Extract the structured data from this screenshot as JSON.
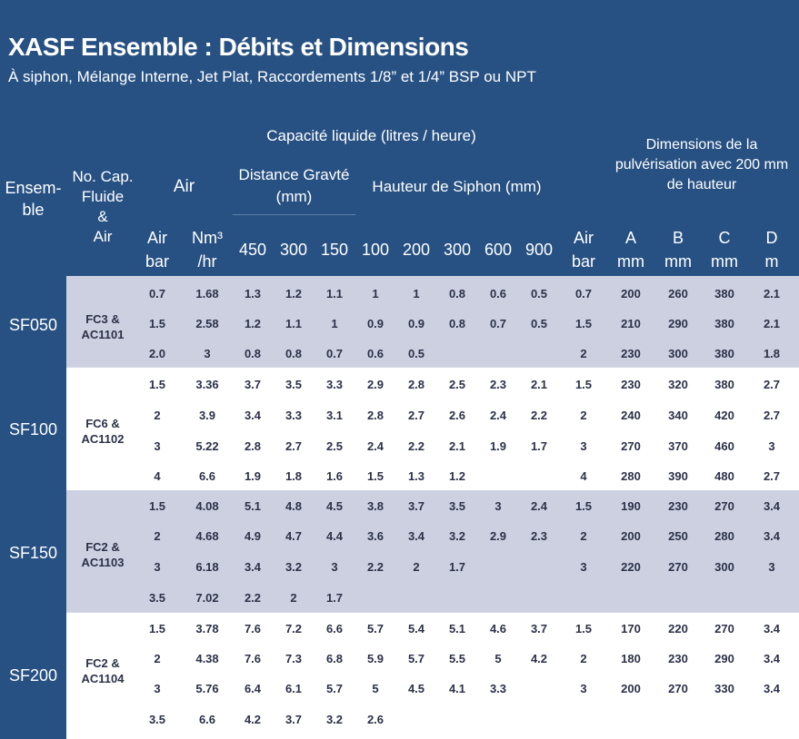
{
  "title": "XASF Ensemble : Débits et Dimensions",
  "subtitle": "À siphon, Mélange Interne,  Jet Plat, Raccordements 1/8” et 1/4” BSP ou NPT",
  "headers": {
    "capacity": "Capacité liquide (litres / heure)",
    "dimensions_l1": "Dimensions de la",
    "dimensions_l2": "pulvérisation avec 200 mm",
    "dimensions_l3": "de hauteur",
    "ensemble_l1": "Ensem-",
    "ensemble_l2": "ble",
    "cap_l1": "No. Cap.",
    "cap_l2": "Fluide",
    "cap_l3": "&",
    "cap_l4": "Air",
    "air": "Air",
    "gravity_l1": "Distance Gravté",
    "gravity_l2": "(mm)",
    "siphon": "Hauteur de Siphon (mm)",
    "columns": [
      {
        "l1": "Air",
        "l2": "bar"
      },
      {
        "l1": "Nm³",
        "l2": "/hr"
      },
      {
        "l1": "450",
        "l2": ""
      },
      {
        "l1": "300",
        "l2": ""
      },
      {
        "l1": "150",
        "l2": ""
      },
      {
        "l1": "100",
        "l2": ""
      },
      {
        "l1": "200",
        "l2": ""
      },
      {
        "l1": "300",
        "l2": ""
      },
      {
        "l1": "600",
        "l2": ""
      },
      {
        "l1": "900",
        "l2": ""
      },
      {
        "l1": "Air",
        "l2": "bar"
      },
      {
        "l1": "A",
        "l2": "mm"
      },
      {
        "l1": "B",
        "l2": "mm"
      },
      {
        "l1": "C",
        "l2": "mm"
      },
      {
        "l1": "D",
        "l2": "m"
      }
    ]
  },
  "groups": [
    {
      "ensemble": "SF050",
      "cap_l1": "FC3 &",
      "cap_l2": "AC1101",
      "rows": [
        [
          "0.7",
          "1.68",
          "1.3",
          "1.2",
          "1.1",
          "1",
          "1",
          "0.8",
          "0.6",
          "0.5",
          "0.7",
          "200",
          "260",
          "380",
          "2.1"
        ],
        [
          "1.5",
          "2.58",
          "1.2",
          "1.1",
          "1",
          "0.9",
          "0.9",
          "0.8",
          "0.7",
          "0.5",
          "1.5",
          "210",
          "290",
          "380",
          "2.1"
        ],
        [
          "2.0",
          "3",
          "0.8",
          "0.8",
          "0.7",
          "0.6",
          "0.5",
          "",
          "",
          "",
          "2",
          "230",
          "300",
          "380",
          "1.8"
        ]
      ]
    },
    {
      "ensemble": "SF100",
      "cap_l1": "FC6 &",
      "cap_l2": "AC1102",
      "rows": [
        [
          "1.5",
          "3.36",
          "3.7",
          "3.5",
          "3.3",
          "2.9",
          "2.8",
          "2.5",
          "2.3",
          "2.1",
          "1.5",
          "230",
          "320",
          "380",
          "2.7"
        ],
        [
          "2",
          "3.9",
          "3.4",
          "3.3",
          "3.1",
          "2.8",
          "2.7",
          "2.6",
          "2.4",
          "2.2",
          "2",
          "240",
          "340",
          "420",
          "2.7"
        ],
        [
          "3",
          "5.22",
          "2.8",
          "2.7",
          "2.5",
          "2.4",
          "2.2",
          "2.1",
          "1.9",
          "1.7",
          "3",
          "270",
          "370",
          "460",
          "3"
        ],
        [
          "4",
          "6.6",
          "1.9",
          "1.8",
          "1.6",
          "1.5",
          "1.3",
          "1.2",
          "",
          "",
          "4",
          "280",
          "390",
          "480",
          "2.7"
        ]
      ]
    },
    {
      "ensemble": "SF150",
      "cap_l1": "FC2 &",
      "cap_l2": "AC1103",
      "rows": [
        [
          "1.5",
          "4.08",
          "5.1",
          "4.8",
          "4.5",
          "3.8",
          "3.7",
          "3.5",
          "3",
          "2.4",
          "1.5",
          "190",
          "230",
          "270",
          "3.4"
        ],
        [
          "2",
          "4.68",
          "4.9",
          "4.7",
          "4.4",
          "3.6",
          "3.4",
          "3.2",
          "2.9",
          "2.3",
          "2",
          "200",
          "250",
          "280",
          "3.4"
        ],
        [
          "3",
          "6.18",
          "3.4",
          "3.2",
          "3",
          "2.2",
          "2",
          "1.7",
          "",
          "",
          "3",
          "220",
          "270",
          "300",
          "3"
        ],
        [
          "3.5",
          "7.02",
          "2.2",
          "2",
          "1.7",
          "",
          "",
          "",
          "",
          "",
          "",
          "",
          "",
          "",
          ""
        ]
      ]
    },
    {
      "ensemble": "SF200",
      "cap_l1": "FC2 &",
      "cap_l2": "AC1104",
      "rows": [
        [
          "1.5",
          "3.78",
          "7.6",
          "7.2",
          "6.6",
          "5.7",
          "5.4",
          "5.1",
          "4.6",
          "3.7",
          "1.5",
          "170",
          "220",
          "270",
          "3.4"
        ],
        [
          "2",
          "4.38",
          "7.6",
          "7.3",
          "6.8",
          "5.9",
          "5.7",
          "5.5",
          "5",
          "4.2",
          "2",
          "180",
          "230",
          "290",
          "3.4"
        ],
        [
          "3",
          "5.76",
          "6.4",
          "6.1",
          "5.7",
          "5",
          "4.5",
          "4.1",
          "3.3",
          "",
          "3",
          "200",
          "270",
          "330",
          "3.4"
        ],
        [
          "3.5",
          "6.6",
          "4.2",
          "3.7",
          "3.2",
          "2.6",
          "",
          "",
          "",
          "",
          "",
          "",
          "",
          "",
          ""
        ]
      ]
    }
  ]
}
